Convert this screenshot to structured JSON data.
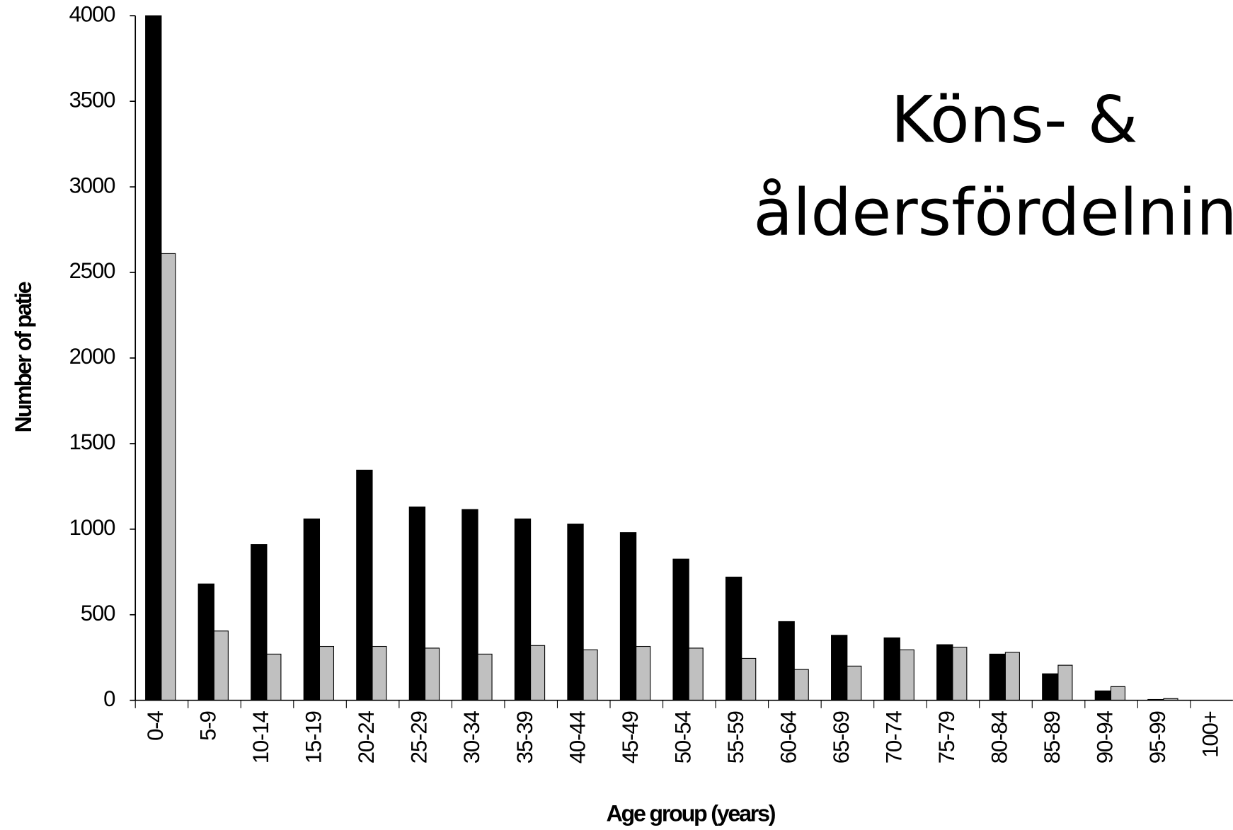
{
  "chart_data": {
    "type": "bar",
    "title": [
      "Köns- &",
      "åldersfördelnin"
    ],
    "x_label": "Age group (years)",
    "y_label": "Number of patie",
    "categories": [
      "0-4",
      "5-9",
      "10-14",
      "15-19",
      "20-24",
      "25-29",
      "30-34",
      "35-39",
      "40-44",
      "45-49",
      "50-54",
      "55-59",
      "60-64",
      "65-69",
      "70-74",
      "75-79",
      "80-84",
      "85-89",
      "90-94",
      "95-99",
      "100+"
    ],
    "series": [
      {
        "color": "#000000",
        "values": [
          4000,
          680,
          910,
          1060,
          1345,
          1130,
          1115,
          1060,
          1030,
          980,
          825,
          720,
          460,
          380,
          365,
          325,
          270,
          155,
          55,
          5,
          0
        ]
      },
      {
        "color": "#c0c0c0",
        "values": [
          2610,
          405,
          270,
          315,
          315,
          305,
          270,
          320,
          295,
          315,
          305,
          245,
          180,
          200,
          295,
          310,
          280,
          205,
          80,
          10,
          0
        ]
      }
    ],
    "ylim": [
      0,
      4000
    ],
    "yticks": [
      0,
      500,
      1000,
      1500,
      2000,
      2500,
      3000,
      3500,
      4000
    ],
    "grid": false
  }
}
